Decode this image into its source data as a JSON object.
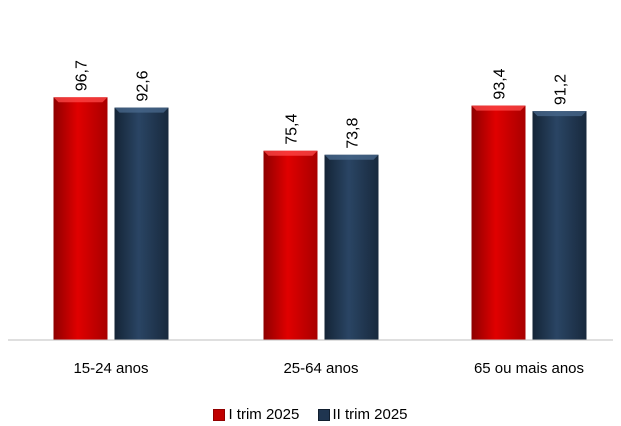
{
  "chart_data": {
    "type": "bar",
    "categories": [
      "15-24 anos",
      "25-64 anos",
      "65 ou mais anos"
    ],
    "series": [
      {
        "name": "I trim 2025",
        "values": [
          96.7,
          75.4,
          93.4
        ],
        "labels": [
          "96,7",
          "75,4",
          "93,4"
        ],
        "color": "#C00000"
      },
      {
        "name": "II trim 2025",
        "values": [
          92.6,
          73.8,
          91.2
        ],
        "labels": [
          "92,6",
          "73,8",
          "91,2"
        ],
        "color": "#1F3550"
      }
    ],
    "title": "",
    "xlabel": "",
    "ylabel": "",
    "ylim": [
      0,
      100
    ],
    "grid": false,
    "legend_position": "bottom"
  }
}
